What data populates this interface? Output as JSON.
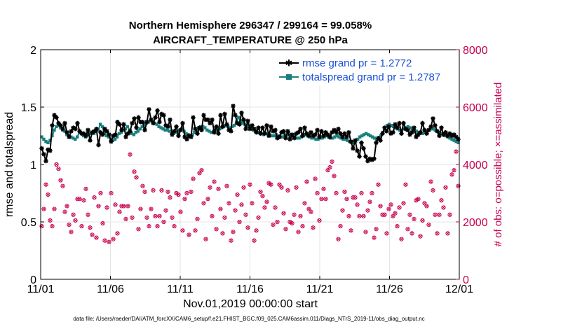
{
  "chart_data": {
    "type": "line",
    "title_line1": "Northern Hemisphere 296347 / 299164 = 99.058%",
    "title_line2": "AIRCRAFT_TEMPERATURE @ 250 hPa",
    "xlabel": "Nov.01,2019 00:00:00 start",
    "ylabel": "rmse and totalspread",
    "y2label": "# of obs: o=possible; ×=assimilated",
    "x_ticks": [
      "11/01",
      "11/06",
      "11/11",
      "11/16",
      "11/21",
      "11/26",
      "12/01"
    ],
    "y_ticks": [
      "0",
      "0.5",
      "1",
      "1.5",
      "2"
    ],
    "y2_ticks": [
      "0",
      "2000",
      "4000",
      "6000",
      "8000"
    ],
    "xlim": [
      0,
      30
    ],
    "ylim": [
      0,
      2
    ],
    "y2lim": [
      0,
      8000
    ],
    "footnote": "data file: /Users/raeder/DAI/ATM_forcXX/CAM6_setup/f.e21.FHIST_BGC.f09_025.CAM6assim.011/Diags_NTrS_2019-11/obs_diag_output.nc",
    "colors": {
      "rmse": "#000000",
      "spread": "#17807e",
      "obs": "#c8004e",
      "legend_text": "#1a4fd6"
    },
    "series": [
      {
        "name": "rmse grand pr = 1.2772",
        "values": [
          1.14,
          1.09,
          1.03,
          1.13,
          1.12,
          1.34,
          1.43,
          1.41,
          1.36,
          1.34,
          1.31,
          1.36,
          1.28,
          1.24,
          1.29,
          1.32,
          1.31,
          1.36,
          1.29,
          1.27,
          1.27,
          1.25,
          1.3,
          1.21,
          1.28,
          1.29,
          1.31,
          1.17,
          1.28,
          1.26,
          1.31,
          1.29,
          1.26,
          1.2,
          1.25,
          1.26,
          1.37,
          1.35,
          1.3,
          1.35,
          1.24,
          1.27,
          1.29,
          1.36,
          1.4,
          1.32,
          1.41,
          1.37,
          1.37,
          1.3,
          1.37,
          1.48,
          1.39,
          1.36,
          1.41,
          1.47,
          1.37,
          1.44,
          1.43,
          1.34,
          1.33,
          1.39,
          1.26,
          1.29,
          1.33,
          1.25,
          1.3,
          1.36,
          1.24,
          1.22,
          1.25,
          1.24,
          1.41,
          1.31,
          1.27,
          1.32,
          1.3,
          1.43,
          1.39,
          1.39,
          1.36,
          1.39,
          1.28,
          1.33,
          1.27,
          1.43,
          1.33,
          1.44,
          1.35,
          1.3,
          1.29,
          1.51,
          1.43,
          1.36,
          1.35,
          1.45,
          1.39,
          1.31,
          1.38,
          1.31,
          1.34,
          1.31,
          1.28,
          1.32,
          1.27,
          1.32,
          1.27,
          1.34,
          1.25,
          1.33,
          1.29,
          1.3,
          1.23,
          1.24,
          1.28,
          1.29,
          1.23,
          1.29,
          1.22,
          1.26,
          1.23,
          1.27,
          1.28,
          1.31,
          1.25,
          1.32,
          1.27,
          1.25,
          1.28,
          1.25,
          1.26,
          1.3,
          1.24,
          1.29,
          1.25,
          1.28,
          1.26,
          1.24,
          1.28,
          1.3,
          1.28,
          1.31,
          1.27,
          1.24,
          1.27,
          1.24,
          1.28,
          1.2,
          1.14,
          1.21,
          1.12,
          1.07,
          1.19,
          1.14,
          1.07,
          1.03,
          1.05,
          1.04,
          1.05,
          1.19,
          1.23,
          1.21,
          1.27,
          1.32,
          1.29,
          1.33,
          1.27,
          1.28,
          1.35,
          1.32,
          1.36,
          1.27,
          1.36,
          1.31,
          1.3,
          1.26,
          1.28,
          1.32,
          1.24,
          1.26,
          1.28,
          1.36,
          1.3,
          1.27,
          1.3,
          1.33,
          1.4,
          1.34,
          1.29,
          1.25,
          1.32,
          1.26,
          1.28,
          1.25,
          1.27,
          1.25,
          1.26,
          1.24,
          1.22
        ]
      },
      {
        "name": "totalspread grand pr = 1.2787",
        "values": [
          1.24,
          1.22,
          1.2,
          1.19,
          1.21,
          1.25,
          1.3,
          1.33,
          1.34,
          1.32,
          1.3,
          1.29,
          1.26,
          1.25,
          1.24,
          1.23,
          1.22,
          1.24,
          1.28,
          1.27,
          1.25,
          1.24,
          1.26,
          1.27,
          1.28,
          1.27,
          1.29,
          1.3,
          1.35,
          1.33,
          1.27,
          1.25,
          1.24,
          1.22,
          1.21,
          1.22,
          1.24,
          1.27,
          1.28,
          1.3,
          1.31,
          1.33,
          1.3,
          1.27,
          1.26,
          1.28,
          1.29,
          1.31,
          1.33,
          1.35,
          1.36,
          1.37,
          1.38,
          1.37,
          1.36,
          1.35,
          1.33,
          1.32,
          1.31,
          1.3,
          1.3,
          1.29,
          1.28,
          1.27,
          1.28,
          1.29,
          1.3,
          1.31,
          1.29,
          1.27,
          1.26,
          1.25,
          1.26,
          1.28,
          1.3,
          1.32,
          1.33,
          1.33,
          1.32,
          1.3,
          1.29,
          1.28,
          1.29,
          1.3,
          1.3,
          1.31,
          1.32,
          1.33,
          1.34,
          1.33,
          1.32,
          1.33,
          1.34,
          1.37,
          1.41,
          1.38,
          1.36,
          1.35,
          1.34,
          1.33,
          1.31,
          1.3,
          1.29,
          1.28,
          1.28,
          1.27,
          1.26,
          1.27,
          1.27,
          1.26,
          1.25,
          1.25,
          1.26,
          1.25,
          1.24,
          1.24,
          1.25,
          1.26,
          1.27,
          1.26,
          1.25,
          1.24,
          1.23,
          1.23,
          1.24,
          1.25,
          1.26,
          1.25,
          1.24,
          1.23,
          1.23,
          1.22,
          1.22,
          1.23,
          1.23,
          1.24,
          1.25,
          1.24,
          1.23,
          1.23,
          1.24,
          1.25,
          1.24,
          1.23,
          1.22,
          1.22,
          1.21,
          1.2,
          1.19,
          1.19,
          1.2,
          1.22,
          1.24,
          1.25,
          1.26,
          1.27,
          1.26,
          1.25,
          1.24,
          1.23,
          1.22,
          1.23,
          1.25,
          1.28,
          1.31,
          1.34,
          1.35,
          1.34,
          1.33,
          1.32,
          1.31,
          1.3,
          1.3,
          1.31,
          1.32,
          1.33,
          1.32,
          1.31,
          1.3,
          1.29,
          1.28,
          1.27,
          1.27,
          1.28,
          1.29,
          1.3,
          1.31,
          1.31,
          1.3,
          1.29,
          1.28,
          1.27,
          1.26,
          1.25,
          1.24,
          1.23,
          1.22,
          1.21,
          1.2,
          1.19
        ]
      }
    ],
    "obs_counts": [
      1850,
      2450,
      3300,
      2950,
      2050,
      1850,
      2450,
      4000,
      3850,
      3450,
      3250,
      2350,
      2550,
      1900,
      1650,
      2250,
      2050,
      2800,
      2800,
      1850,
      2750,
      3150,
      2250,
      1800,
      1550,
      2850,
      1450,
      2550,
      3000,
      1950,
      1350,
      2500,
      1300,
      3000,
      1400,
      2600,
      1600,
      2350,
      2550,
      2550,
      2100,
      2550,
      4350,
      2150,
      3750,
      3550,
      1750,
      2450,
      3250,
      3050,
      2150,
      1850,
      2450,
      3100,
      2200,
      1850,
      2200,
      3100,
      2000,
      2400,
      3050,
      2850,
      2150,
      1850,
      3000,
      2950,
      2350,
      1700,
      2800,
      3000,
      1550,
      3050,
      3500,
      1700,
      2100,
      3700,
      3800,
      2650,
      1400,
      2800,
      3200,
      2200,
      3400,
      1750,
      3150,
      2450,
      1600,
      2150,
      3250,
      2650,
      1350,
      1650,
      2400,
      2950,
      2000,
      2600,
      3200,
      2250,
      1800,
      3300,
      2650,
      1350,
      1700,
      2150,
      3050,
      2900,
      2500,
      2700,
      3350,
      3300,
      1900,
      2500,
      2000,
      3300,
      3200,
      2300,
      1750,
      3100,
      2000,
      1950,
      2250,
      3200,
      1650,
      2200,
      1850,
      2650,
      3400,
      2450,
      2350,
      1800,
      3500,
      3000,
      2050,
      2800,
      3150,
      2800,
      3800,
      3900,
      4100,
      3600,
      3000,
      1400,
      1850,
      2400,
      3050,
      2800,
      2200,
      1700,
      2850,
      2850,
      2600,
      2200,
      3000,
      2200,
      1650,
      2400,
      2700,
      3000,
      1450,
      1750,
      3300,
      2550,
      2250,
      2250,
      1600,
      2450,
      2600,
      2200,
      2300,
      1850,
      2500,
      1400,
      2650,
      3300,
      1750,
      2250,
      1600,
      2100,
      2750,
      2800,
      1500,
      2050,
      2650,
      2550,
      1900,
      3400,
      3100,
      2250,
      1600,
      2250,
      2750,
      2500,
      3200,
      1600,
      2250,
      3650,
      3800,
      4450,
      3250
    ]
  }
}
